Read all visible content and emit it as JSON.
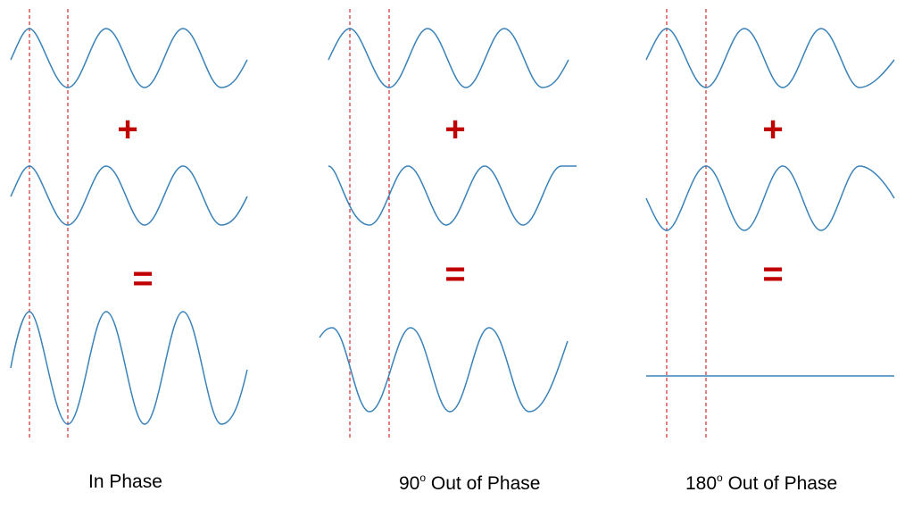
{
  "colors": {
    "wave": "#3a82b8",
    "guide": "#cc0000",
    "operator": "#c00000",
    "text": "#000000"
  },
  "panels": [
    {
      "id": "in-phase",
      "label_main": "In Phase",
      "label_degree": "",
      "label_rest": "",
      "operators": [
        "+",
        "="
      ],
      "input_wave_1": {
        "amplitude": 1,
        "phase_shift_deg": 0
      },
      "input_wave_2": {
        "amplitude": 1,
        "phase_shift_deg": 0
      },
      "sum_wave": {
        "amplitude": 2,
        "phase_shift_deg": 0
      }
    },
    {
      "id": "90",
      "label_main": "90",
      "label_degree": "o",
      "label_rest": " Out of Phase",
      "operators": [
        "+",
        "="
      ],
      "input_wave_1": {
        "amplitude": 1,
        "phase_shift_deg": 0
      },
      "input_wave_2": {
        "amplitude": 1,
        "phase_shift_deg": 90
      },
      "sum_wave": {
        "amplitude": 1.414,
        "phase_shift_deg": 45
      }
    },
    {
      "id": "180",
      "label_main": "180",
      "label_degree": "o",
      "label_rest": " Out of Phase",
      "operators": [
        "+",
        "="
      ],
      "input_wave_1": {
        "amplitude": 1,
        "phase_shift_deg": 0
      },
      "input_wave_2": {
        "amplitude": 1,
        "phase_shift_deg": 180
      },
      "sum_wave": {
        "amplitude": 0,
        "phase_shift_deg": 0
      }
    }
  ]
}
